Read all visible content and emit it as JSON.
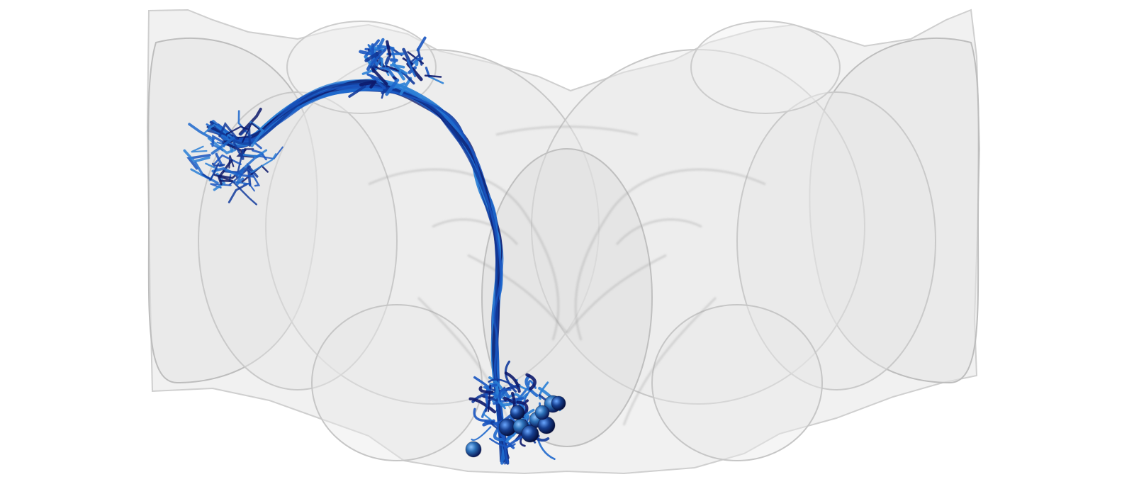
{
  "scene": {
    "background": "#ffffff",
    "brain_fill": "#d9d9d9",
    "brain_edge": "#9a9a9a",
    "neuron_colors": [
      "#0d1a6b",
      "#123b9c",
      "#1a55c0",
      "#2a7fd6",
      "#1f68cc"
    ],
    "soma_colors": [
      "#0b1b5a",
      "#163f8f",
      "#2b6fb6",
      "#3d8fd1"
    ]
  }
}
